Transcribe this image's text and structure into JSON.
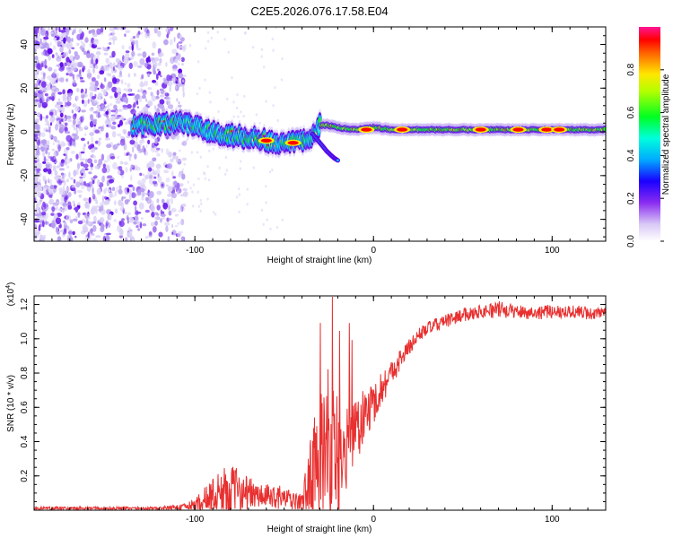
{
  "title": "C2E5.2026.076.17.58.E04",
  "colors": {
    "snr_line": "#e83030",
    "axis": "#000000",
    "spec_colors": [
      "#dcd3f6",
      "#b69cf0",
      "#7f3bf0",
      "#5a00e8",
      "#0000ff",
      "#00b4ff",
      "#00ffcc",
      "#00ff00",
      "#ffee00",
      "#ff0000",
      "#ff2090"
    ]
  },
  "chart_data": [
    {
      "type": "heatmap",
      "xlabel": "Height of straight line (km)",
      "ylabel": "Frequency (Hz)",
      "xlim": [
        -190,
        130
      ],
      "ylim": [
        -50,
        48
      ],
      "xticks": [
        {
          "v": -100,
          "label": "-100"
        },
        {
          "v": 0,
          "label": "0"
        },
        {
          "v": 100,
          "label": "100"
        }
      ],
      "yticks": [
        {
          "v": 40,
          "label": "40"
        },
        {
          "v": 20,
          "label": "20"
        },
        {
          "v": 0,
          "label": "0"
        },
        {
          "v": -20,
          "label": "-20"
        },
        {
          "v": -40,
          "label": "-40"
        }
      ],
      "ridge": {
        "x": [
          -135,
          -125,
          -115,
          -105,
          -95,
          -85,
          -75,
          -65,
          -55,
          -45,
          -38,
          -34,
          -30,
          -25,
          -20,
          -10,
          0,
          10,
          20,
          40,
          60,
          80,
          100,
          130
        ],
        "freq": [
          3,
          3,
          4,
          4,
          1,
          -1,
          -2,
          -3,
          -5,
          -5,
          -4,
          -2,
          3,
          3,
          2,
          1,
          2,
          1,
          1,
          1,
          1,
          1,
          1,
          1
        ]
      },
      "branch": {
        "x": [
          -34,
          -30,
          -26,
          -22,
          -20
        ],
        "freq": [
          -1,
          -5,
          -9,
          -12,
          -13
        ]
      },
      "hot_spots": [
        {
          "x": -4,
          "freq": 1
        },
        {
          "x": 16,
          "freq": 1
        },
        {
          "x": 60,
          "freq": 1
        },
        {
          "x": 81,
          "freq": 1
        },
        {
          "x": 97,
          "freq": 1
        },
        {
          "x": 104,
          "freq": 1
        },
        {
          "x": -45,
          "freq": -5
        },
        {
          "x": -60,
          "freq": -4
        }
      ],
      "colorbar": {
        "label": "Normalized spectral amplitude",
        "ticks": [
          {
            "v": 0.0,
            "label": "0.0"
          },
          {
            "v": 0.2,
            "label": "0.2"
          },
          {
            "v": 0.4,
            "label": "0.4"
          },
          {
            "v": 0.6,
            "label": "0.6"
          },
          {
            "v": 0.8,
            "label": "0.8"
          }
        ],
        "range": [
          0,
          1
        ]
      }
    },
    {
      "type": "line",
      "xlabel": "Height of straight line (km)",
      "ylabel": "SNR (10 * v/v)",
      "scale_label": "(x10",
      "scale_exp": "4",
      "xlim": [
        -190,
        130
      ],
      "ylim": [
        0,
        1.25
      ],
      "xticks": [
        {
          "v": -100,
          "label": "-100"
        },
        {
          "v": 0,
          "label": "0"
        },
        {
          "v": 100,
          "label": "100"
        }
      ],
      "yticks": [
        {
          "v": 0.2,
          "label": "0.2"
        },
        {
          "v": 0.4,
          "label": "0.4"
        },
        {
          "v": 0.6,
          "label": "0.6"
        },
        {
          "v": 0.8,
          "label": "0.8"
        },
        {
          "v": 1.0,
          "label": "1.0"
        },
        {
          "v": 1.2,
          "label": "1.2"
        }
      ],
      "envelope": {
        "x": [
          -190,
          -150,
          -120,
          -105,
          -100,
          -95,
          -90,
          -85,
          -80,
          -75,
          -70,
          -65,
          -60,
          -55,
          -50,
          -45,
          -40,
          -35,
          -32,
          -30,
          -28,
          -25,
          -22,
          -20,
          -18,
          -15,
          -12,
          -10,
          -8,
          -5,
          -2,
          0,
          5,
          10,
          15,
          20,
          25,
          30,
          40,
          50,
          60,
          70,
          80,
          90,
          100,
          110,
          120,
          130
        ],
        "base": [
          0.01,
          0.01,
          0.01,
          0.02,
          0.03,
          0.05,
          0.08,
          0.1,
          0.12,
          0.12,
          0.1,
          0.08,
          0.08,
          0.08,
          0.07,
          0.05,
          0.05,
          0.2,
          0.3,
          0.3,
          0.3,
          0.35,
          0.32,
          0.3,
          0.3,
          0.3,
          0.45,
          0.5,
          0.5,
          0.55,
          0.6,
          0.62,
          0.72,
          0.8,
          0.88,
          0.95,
          1.02,
          1.06,
          1.1,
          1.14,
          1.16,
          1.17,
          1.16,
          1.15,
          1.16,
          1.16,
          1.15,
          1.14
        ],
        "amp": [
          0.01,
          0.01,
          0.01,
          0.02,
          0.04,
          0.08,
          0.12,
          0.14,
          0.15,
          0.12,
          0.1,
          0.08,
          0.07,
          0.07,
          0.07,
          0.05,
          0.05,
          0.25,
          0.3,
          0.45,
          0.35,
          0.55,
          0.45,
          0.4,
          0.35,
          0.3,
          0.25,
          0.22,
          0.2,
          0.15,
          0.15,
          0.12,
          0.1,
          0.08,
          0.06,
          0.05,
          0.04,
          0.04,
          0.04,
          0.04,
          0.04,
          0.05,
          0.04,
          0.04,
          0.04,
          0.04,
          0.04,
          0.04
        ]
      }
    }
  ]
}
